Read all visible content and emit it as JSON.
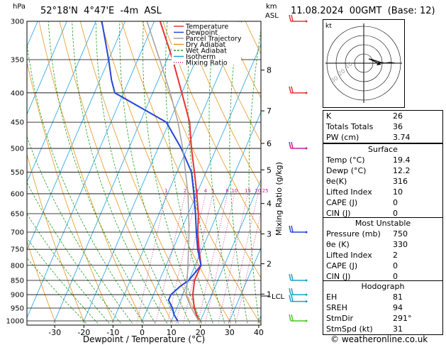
{
  "header": {
    "hpa_unit": "hPa",
    "location": "52°18'N  4°47'E  -4m  ASL",
    "km_unit": "km",
    "asl_unit": "ASL",
    "datetime": "11.08.2024  00GMT  (Base: 12)"
  },
  "footer": {
    "copyright": "© weatheronline.co.uk"
  },
  "chart_data": {
    "type": "skew-t log-p",
    "xlabel": "Dewpoint / Temperature (°C)",
    "x_ticks": [
      -30,
      -20,
      -10,
      0,
      10,
      20,
      30,
      40
    ],
    "xlim_at_1000hPa": [
      -37,
      41
    ],
    "ylabel_left": "hPa",
    "p_ticks": [
      300,
      350,
      400,
      450,
      500,
      550,
      600,
      650,
      700,
      750,
      800,
      850,
      900,
      950,
      1000
    ],
    "ylim_hpa": [
      300,
      1010
    ],
    "km_ticks": [
      {
        "label": "1",
        "p": 898
      },
      {
        "label": "2",
        "p": 795
      },
      {
        "label": "3",
        "p": 705
      },
      {
        "label": "4",
        "p": 624
      },
      {
        "label": "5",
        "p": 545
      },
      {
        "label": "6",
        "p": 490
      },
      {
        "label": "7",
        "p": 430
      },
      {
        "label": "8",
        "p": 365
      }
    ],
    "lcl": {
      "label": "LCL",
      "p": 905
    },
    "mixing_ratio_label": "Mixing Ratio (g/kg)",
    "mixing_ratios": [
      {
        "label": "1",
        "t": -10.5
      },
      {
        "label": "2",
        "t": -4
      },
      {
        "label": "3",
        "t": 0
      },
      {
        "label": "4",
        "t": 3
      },
      {
        "label": "5",
        "t": 5.5
      },
      {
        "label": "8",
        "t": 10.5
      },
      {
        "label": "10",
        "t": 13
      },
      {
        "label": "15",
        "t": 17.5
      },
      {
        "label": "20",
        "t": 21
      },
      {
        "label": "25",
        "t": 23.5
      }
    ],
    "legend": [
      {
        "name": "Temperature",
        "color": "#e83232"
      },
      {
        "name": "Dewpoint",
        "color": "#2546d8"
      },
      {
        "name": "Parcel Trajectory",
        "color": "#a0a0a0"
      },
      {
        "name": "Dry Adiabat",
        "color": "#e8961e"
      },
      {
        "name": "Wet Adiabat",
        "color": "#1ea01e"
      },
      {
        "name": "Isotherm",
        "color": "#1ea0e8"
      },
      {
        "name": "Mixing Ratio",
        "color": "#c81e96"
      }
    ],
    "series": [
      {
        "name": "Temperature",
        "points": [
          [
            1000,
            19.4
          ],
          [
            950,
            16
          ],
          [
            900,
            13.5
          ],
          [
            850,
            12
          ],
          [
            800,
            12
          ],
          [
            750,
            9
          ],
          [
            700,
            6
          ],
          [
            650,
            3.5
          ],
          [
            600,
            0
          ],
          [
            550,
            -4
          ],
          [
            500,
            -8.5
          ],
          [
            450,
            -13
          ],
          [
            400,
            -20
          ],
          [
            350,
            -28
          ],
          [
            300,
            -38
          ]
        ]
      },
      {
        "name": "Dewpoint",
        "points": [
          [
            1000,
            12.2
          ],
          [
            975,
            10
          ],
          [
            950,
            8.5
          ],
          [
            920,
            6
          ],
          [
            900,
            6
          ],
          [
            870,
            8
          ],
          [
            850,
            10
          ],
          [
            800,
            12
          ],
          [
            750,
            8.5
          ],
          [
            700,
            5.5
          ],
          [
            650,
            2.5
          ],
          [
            600,
            -1
          ],
          [
            550,
            -5
          ],
          [
            500,
            -12
          ],
          [
            450,
            -21
          ],
          [
            400,
            -43
          ],
          [
            380,
            -46
          ],
          [
            350,
            -50
          ],
          [
            300,
            -58
          ]
        ]
      },
      {
        "name": "Parcel Trajectory",
        "points": [
          [
            1000,
            19.4
          ],
          [
            950,
            15
          ],
          [
            905,
            11.5
          ],
          [
            850,
            9.5
          ],
          [
            800,
            7.5
          ],
          [
            700,
            3
          ],
          [
            600,
            -3
          ],
          [
            500,
            -11.5
          ],
          [
            450,
            -17
          ],
          [
            400,
            -24
          ],
          [
            350,
            -32.5
          ],
          [
            300,
            -42.5
          ]
        ]
      }
    ]
  },
  "wind_barbs": [
    {
      "p": 300,
      "color": "#e83232"
    },
    {
      "p": 400,
      "color": "#e83232"
    },
    {
      "p": 500,
      "color": "#c81e96"
    },
    {
      "p": 700,
      "color": "#2546d8"
    },
    {
      "p": 850,
      "color": "#1ea0c8"
    },
    {
      "p": 900,
      "color": "#1ea0c8"
    },
    {
      "p": 925,
      "color": "#1ea0c8"
    },
    {
      "p": 1000,
      "color": "#46c81e"
    }
  ],
  "hodograph": {
    "unit_label": "kt",
    "ring_labels": [
      "10",
      "20",
      "30"
    ]
  },
  "indices": {
    "rows": [
      {
        "label": "K",
        "value": "26"
      },
      {
        "label": "Totals Totals",
        "value": "36"
      },
      {
        "label": "PW (cm)",
        "value": "3.74"
      }
    ]
  },
  "surface": {
    "title": "Surface",
    "rows": [
      {
        "label": "Temp (°C)",
        "value": "19.4"
      },
      {
        "label": "Dewp (°C)",
        "value": "12.2"
      },
      {
        "label": "θe(K)",
        "value": "316"
      },
      {
        "label": "Lifted Index",
        "value": "10"
      },
      {
        "label": "CAPE (J)",
        "value": "0"
      },
      {
        "label": "CIN (J)",
        "value": "0"
      }
    ]
  },
  "most_unstable": {
    "title": "Most Unstable",
    "rows": [
      {
        "label": "Pressure (mb)",
        "value": "750"
      },
      {
        "label": "θe (K)",
        "value": "330"
      },
      {
        "label": "Lifted Index",
        "value": "2"
      },
      {
        "label": "CAPE (J)",
        "value": "0"
      },
      {
        "label": "CIN (J)",
        "value": "0"
      }
    ]
  },
  "hodograph_table": {
    "title": "Hodograph",
    "rows": [
      {
        "label": "EH",
        "value": "81"
      },
      {
        "label": "SREH",
        "value": "94"
      },
      {
        "label": "StmDir",
        "value": "291°"
      },
      {
        "label": "StmSpd (kt)",
        "value": "31"
      }
    ]
  }
}
